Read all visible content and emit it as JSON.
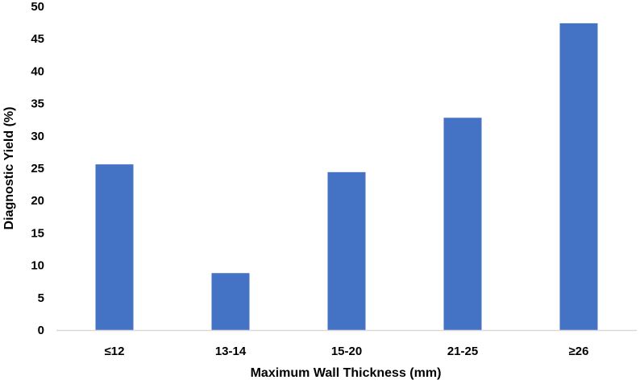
{
  "chart_data": {
    "type": "bar",
    "categories": [
      "≤12",
      "13-14",
      "15-20",
      "21-25",
      "≥26"
    ],
    "values": [
      25.6,
      8.8,
      24.4,
      32.8,
      47.4
    ],
    "title": "",
    "xlabel": "Maximum Wall Thickness (mm)",
    "ylabel": "Diagnostic Yield (%)",
    "ylim": [
      0,
      50
    ],
    "yticks": [
      0,
      5,
      10,
      15,
      20,
      25,
      30,
      35,
      40,
      45,
      50
    ],
    "grid": false,
    "legend": "none",
    "colors": {
      "bar": "#4472C4",
      "axis": "#D9D9D9",
      "text": "#000000"
    }
  }
}
